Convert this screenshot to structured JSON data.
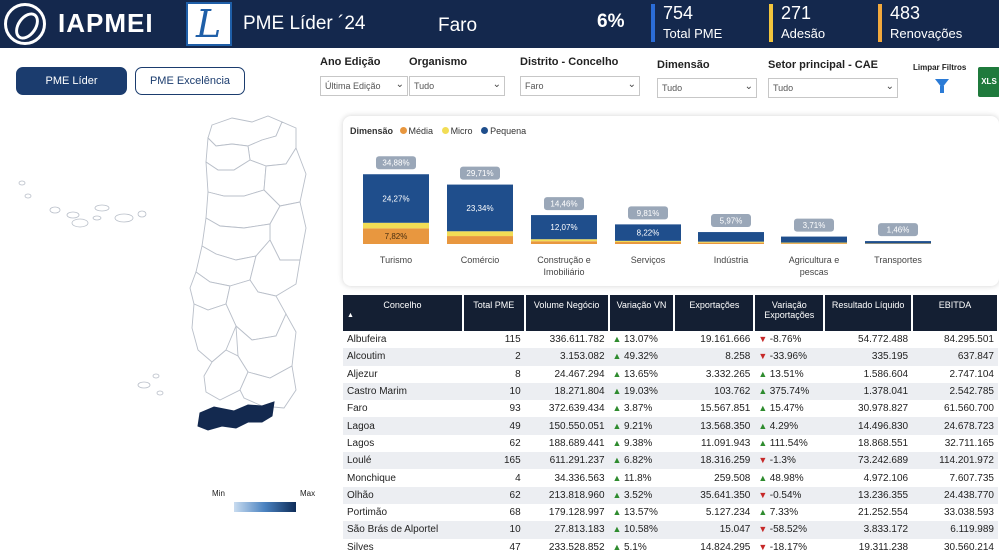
{
  "header": {
    "brand": "IAPMEI",
    "pme_logo_letter": "L",
    "title": "PME Líder ´24",
    "district": "Faro",
    "percent": "6%",
    "kpis": [
      {
        "value": "754",
        "label": "Total PME",
        "color": "#2b6cd6"
      },
      {
        "value": "271",
        "label": "Adesão",
        "color": "#f2c53d"
      },
      {
        "value": "483",
        "label": "Renovações",
        "color": "#f2a93d"
      }
    ]
  },
  "toggles": {
    "active": "PME Líder",
    "inactive": "PME Excelência"
  },
  "filters": [
    {
      "label": "Ano Edição",
      "value": "Última Edição"
    },
    {
      "label": "Organismo",
      "value": "Tudo"
    },
    {
      "label": "Distrito - Concelho",
      "value": "Faro"
    },
    {
      "label": "Dimensão",
      "value": "Tudo"
    },
    {
      "label": "Setor principal - CAE",
      "value": "Tudo"
    }
  ],
  "actions": {
    "clear_filters": "Limpar Filtros",
    "export": "XLS"
  },
  "map_legend": {
    "min": "Min",
    "max": "Max"
  },
  "chart_data": {
    "type": "bar",
    "stacked": true,
    "legend_title": "Dimensão",
    "legend": [
      {
        "name": "Média",
        "color": "#e8973f"
      },
      {
        "name": "Micro",
        "color": "#f2dd55"
      },
      {
        "name": "Pequena",
        "color": "#1f4e8c"
      }
    ],
    "categories": [
      "Turismo",
      "Comércio",
      "Construção e Imobiliário",
      "Serviços",
      "Indústria",
      "Agricultura e pescas",
      "Transportes"
    ],
    "totals": [
      34.88,
      29.71,
      14.46,
      9.81,
      5.97,
      3.71,
      1.46
    ],
    "series": [
      {
        "name": "Pequena",
        "values": [
          24.27,
          23.34,
          12.07,
          8.22,
          4.8,
          3.0,
          1.2
        ]
      },
      {
        "name": "Micro",
        "values": [
          2.79,
          2.4,
          1.0,
          0.6,
          0.5,
          0.3,
          0.1
        ]
      },
      {
        "name": "Média",
        "values": [
          7.82,
          3.97,
          1.39,
          0.99,
          0.67,
          0.41,
          0.16
        ]
      }
    ],
    "bar_labels": {
      "Pequena": [
        "24,27%",
        "23,34%",
        "12,07%",
        "8,22%",
        "",
        "",
        ""
      ],
      "Média": [
        "7,82%",
        "",
        "",
        "",
        "",
        "",
        ""
      ]
    },
    "total_labels": [
      "34,88%",
      "29,71%",
      "14,46%",
      "9,81%",
      "5,97%",
      "3,71%",
      "1,46%"
    ],
    "category_labels": [
      "Turismo",
      "Comércio",
      "Construção e|Imobiliário",
      "Serviços",
      "Indústria",
      "Agricultura e|pescas",
      "Transportes"
    ]
  },
  "table": {
    "columns": [
      "Concelho",
      "Total PME",
      "Volume Negócio",
      "Variação VN",
      "Exportações",
      "Variação Exportações",
      "Resultado Líquido",
      "EBITDA"
    ],
    "sort_indicator": "▲",
    "rows": [
      {
        "name": "Albufeira",
        "total": "115",
        "volume": "336.611.782",
        "var_vn": "13.07%",
        "var_vn_dir": "up",
        "exports": "19.161.666",
        "var_exp": "-8.76%",
        "var_exp_dir": "down",
        "result": "54.772.488",
        "ebitda": "84.295.501"
      },
      {
        "name": "Alcoutim",
        "total": "2",
        "volume": "3.153.082",
        "var_vn": "49.32%",
        "var_vn_dir": "up",
        "exports": "8.258",
        "var_exp": "-33.96%",
        "var_exp_dir": "down",
        "result": "335.195",
        "ebitda": "637.847"
      },
      {
        "name": "Aljezur",
        "total": "8",
        "volume": "24.467.294",
        "var_vn": "13.65%",
        "var_vn_dir": "up",
        "exports": "3.332.265",
        "var_exp": "13.51%",
        "var_exp_dir": "up",
        "result": "1.586.604",
        "ebitda": "2.747.104"
      },
      {
        "name": "Castro Marim",
        "total": "10",
        "volume": "18.271.804",
        "var_vn": "19.03%",
        "var_vn_dir": "up",
        "exports": "103.762",
        "var_exp": "375.74%",
        "var_exp_dir": "up",
        "result": "1.378.041",
        "ebitda": "2.542.785"
      },
      {
        "name": "Faro",
        "total": "93",
        "volume": "372.639.434",
        "var_vn": "3.87%",
        "var_vn_dir": "up",
        "exports": "15.567.851",
        "var_exp": "15.47%",
        "var_exp_dir": "up",
        "result": "30.978.827",
        "ebitda": "61.560.700"
      },
      {
        "name": "Lagoa",
        "total": "49",
        "volume": "150.550.051",
        "var_vn": "9.21%",
        "var_vn_dir": "up",
        "exports": "13.568.350",
        "var_exp": "4.29%",
        "var_exp_dir": "up",
        "result": "14.496.830",
        "ebitda": "24.678.723"
      },
      {
        "name": "Lagos",
        "total": "62",
        "volume": "188.689.441",
        "var_vn": "9.38%",
        "var_vn_dir": "up",
        "exports": "11.091.943",
        "var_exp": "111.54%",
        "var_exp_dir": "up",
        "result": "18.868.551",
        "ebitda": "32.711.165"
      },
      {
        "name": "Loulé",
        "total": "165",
        "volume": "611.291.237",
        "var_vn": "6.82%",
        "var_vn_dir": "up",
        "exports": "18.316.259",
        "var_exp": "-1.3%",
        "var_exp_dir": "down",
        "result": "73.242.689",
        "ebitda": "114.201.972"
      },
      {
        "name": "Monchique",
        "total": "4",
        "volume": "34.336.563",
        "var_vn": "11.8%",
        "var_vn_dir": "up",
        "exports": "259.508",
        "var_exp": "48.98%",
        "var_exp_dir": "up",
        "result": "4.972.106",
        "ebitda": "7.607.735"
      },
      {
        "name": "Olhão",
        "total": "62",
        "volume": "213.818.960",
        "var_vn": "3.52%",
        "var_vn_dir": "up",
        "exports": "35.641.350",
        "var_exp": "-0.54%",
        "var_exp_dir": "down",
        "result": "13.236.355",
        "ebitda": "24.438.770"
      },
      {
        "name": "Portimão",
        "total": "68",
        "volume": "179.128.997",
        "var_vn": "13.57%",
        "var_vn_dir": "up",
        "exports": "5.127.234",
        "var_exp": "7.33%",
        "var_exp_dir": "up",
        "result": "21.252.554",
        "ebitda": "33.038.593"
      },
      {
        "name": "São Brás de Alportel",
        "total": "10",
        "volume": "27.813.183",
        "var_vn": "10.58%",
        "var_vn_dir": "up",
        "exports": "15.047",
        "var_exp": "-58.52%",
        "var_exp_dir": "down",
        "result": "3.833.172",
        "ebitda": "6.119.989"
      },
      {
        "name": "Silves",
        "total": "47",
        "volume": "233.528.852",
        "var_vn": "5.1%",
        "var_vn_dir": "up",
        "exports": "14.824.295",
        "var_exp": "-18.17%",
        "var_exp_dir": "down",
        "result": "19.311.238",
        "ebitda": "30.560.214"
      }
    ]
  }
}
